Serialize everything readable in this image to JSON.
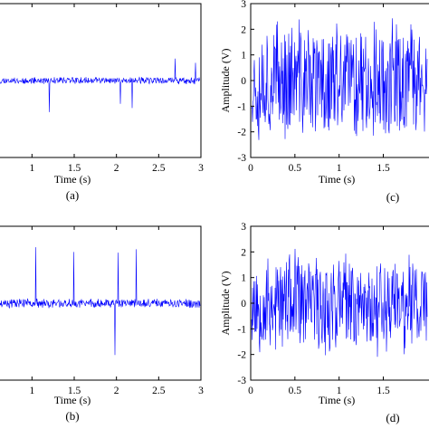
{
  "chart_data": [
    {
      "id": "a",
      "type": "line",
      "caption": "(a)",
      "xlabel": "Time (s)",
      "ylabel": "",
      "xlim": [
        0.6,
        3
      ],
      "xticks": [
        "1",
        "1.5",
        "2",
        "2.5",
        "3"
      ],
      "xtick_values": [
        1,
        1.5,
        2,
        2.5,
        3
      ],
      "yticks": [],
      "ylim": [
        -3,
        3
      ],
      "series": [
        {
          "color": "#0000ff",
          "noise_amplitude": 0.15,
          "spike_amplitude": 1.6
        }
      ]
    },
    {
      "id": "b",
      "type": "line",
      "caption": "(b)",
      "xlabel": "Time (s)",
      "ylabel": "",
      "xlim": [
        0.6,
        3
      ],
      "xticks": [
        "1",
        "1.5",
        "2",
        "2.5",
        "3"
      ],
      "xtick_values": [
        1,
        1.5,
        2,
        2.5,
        3
      ],
      "yticks": [],
      "ylim": [
        -3,
        3
      ],
      "series": [
        {
          "color": "#0000ff",
          "noise_amplitude": 0.2,
          "spike_amplitude": 2.2
        }
      ]
    },
    {
      "id": "c",
      "type": "line",
      "caption": "(c)",
      "xlabel": "Time (s)",
      "ylabel": "Amplitude (V)",
      "xlim": [
        0,
        2.15
      ],
      "xticks": [
        "0",
        "0.5",
        "1",
        "1.5"
      ],
      "xtick_values": [
        0,
        0.5,
        1,
        1.5
      ],
      "yticks": [
        "3",
        "2",
        "1",
        "0",
        "-1",
        "-2",
        "-3"
      ],
      "ytick_values": [
        3,
        2,
        1,
        0,
        -1,
        -2,
        -3
      ],
      "ylim": [
        -3,
        3
      ],
      "series": [
        {
          "color": "#0000ff",
          "noise_amplitude": 2.6
        }
      ]
    },
    {
      "id": "d",
      "type": "line",
      "caption": "(d)",
      "xlabel": "Time (s)",
      "ylabel": "Amplitude (V)",
      "xlim": [
        0,
        2.15
      ],
      "xticks": [
        "0",
        "0.5",
        "1",
        "1.5"
      ],
      "xtick_values": [
        0,
        0.5,
        1,
        1.5
      ],
      "yticks": [
        "3",
        "2",
        "1",
        "0",
        "-1",
        "-2",
        "-3"
      ],
      "ytick_values": [
        3,
        2,
        1,
        0,
        -1,
        -2,
        -3
      ],
      "ylim": [
        -3,
        3
      ],
      "series": [
        {
          "color": "#0000ff",
          "noise_amplitude": 2.2
        }
      ]
    }
  ]
}
